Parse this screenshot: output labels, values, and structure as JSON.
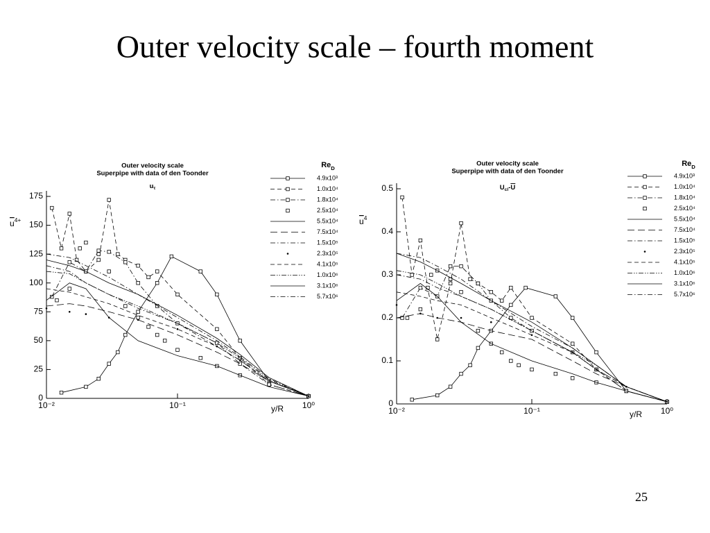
{
  "title": "Outer velocity scale – fourth moment",
  "page_number": "25",
  "chart_data": [
    {
      "type": "line",
      "title": "Outer velocity scale",
      "subtitle": "Superpipe with data of den Toonder",
      "formula": [
        {
          "text": "u"
        },
        {
          "text": "τ",
          "sub": true
        }
      ],
      "ylabel": [
        {
          "text": "u",
          "overline": true
        },
        {
          "text": "4+",
          "sup": true
        }
      ],
      "xlabel": "y/R",
      "xlog": true,
      "xlim": [
        0.01,
        1
      ],
      "xticks": [
        {
          "value": 0.01,
          "label": "10⁻²"
        },
        {
          "value": 0.1,
          "label": "10⁻¹"
        },
        {
          "value": 1,
          "label": "10⁰"
        }
      ],
      "ylim": [
        0,
        175
      ],
      "yticks": [
        0,
        25,
        50,
        75,
        100,
        125,
        150,
        175
      ],
      "legend": "top-right",
      "legend_title": [
        {
          "text": "Re"
        },
        {
          "text": "D",
          "sub": true
        }
      ],
      "series": [
        {
          "name": "4.9x10³",
          "color": "#000",
          "line": "solid",
          "marker": "square",
          "x": [
            0.013,
            0.02,
            0.025,
            0.03,
            0.035,
            0.04,
            0.05,
            0.07,
            0.09,
            0.15,
            0.2,
            0.3,
            0.5,
            1
          ],
          "values": [
            5,
            10,
            17,
            30,
            40,
            55,
            75,
            100,
            123,
            110,
            90,
            50,
            15,
            2
          ]
        },
        {
          "name": "1.0x10⁴",
          "color": "#000",
          "line": "dashed",
          "marker": "square",
          "x": [
            0.011,
            0.013,
            0.015,
            0.017,
            0.02,
            0.025,
            0.03,
            0.035,
            0.04,
            0.05,
            0.06,
            0.07,
            0.1,
            0.2,
            0.3,
            0.5,
            1
          ],
          "values": [
            165,
            130,
            160,
            120,
            110,
            120,
            172,
            125,
            120,
            115,
            105,
            110,
            90,
            60,
            35,
            12,
            2
          ]
        },
        {
          "name": "1.8x10⁴",
          "color": "#000",
          "line": "dashdot",
          "marker": "square",
          "x": [
            0.011,
            0.015,
            0.02,
            0.025,
            0.03,
            0.04,
            0.05,
            0.07,
            0.1,
            0.2,
            0.3,
            0.5,
            1
          ],
          "values": [
            88,
            118,
            110,
            128,
            127,
            118,
            100,
            80,
            65,
            48,
            30,
            12,
            2
          ]
        },
        {
          "name": "2.5x10⁴",
          "color": "#000",
          "line": "none",
          "marker": "square",
          "x": [
            0.012,
            0.015,
            0.018,
            0.02,
            0.025,
            0.03,
            0.04,
            0.05,
            0.06,
            0.07,
            0.08,
            0.1,
            0.15,
            0.2,
            0.3,
            0.5,
            1
          ],
          "values": [
            85,
            95,
            130,
            135,
            125,
            110,
            80,
            70,
            62,
            55,
            50,
            42,
            35,
            28,
            20,
            12,
            2
          ]
        },
        {
          "name": "5.5x10⁴",
          "color": "#000",
          "line": "solid",
          "marker": "none",
          "x": [
            0.01,
            0.015,
            0.02,
            0.03,
            0.05,
            0.1,
            0.2,
            0.3,
            0.5,
            1
          ],
          "values": [
            85,
            100,
            95,
            70,
            50,
            37,
            28,
            20,
            10,
            2
          ]
        },
        {
          "name": "7.5x10⁴",
          "color": "#000",
          "line": "longdash",
          "marker": "none",
          "x": [
            0.01,
            0.015,
            0.02,
            0.03,
            0.05,
            0.1,
            0.2,
            0.3,
            0.5,
            1
          ],
          "values": [
            80,
            82,
            80,
            75,
            68,
            55,
            40,
            30,
            15,
            2
          ]
        },
        {
          "name": "1.5x10⁵",
          "color": "#000",
          "line": "dashdot",
          "marker": "none",
          "x": [
            0.01,
            0.015,
            0.02,
            0.03,
            0.05,
            0.1,
            0.2,
            0.3,
            0.5,
            1
          ],
          "values": [
            115,
            110,
            100,
            90,
            78,
            65,
            45,
            33,
            15,
            2
          ]
        },
        {
          "name": "2.3x10⁵",
          "color": "#000",
          "line": "none",
          "marker": "dot",
          "x": [
            0.01,
            0.015,
            0.02,
            0.03,
            0.05,
            0.1,
            0.2,
            0.3,
            0.5,
            1
          ],
          "values": [
            78,
            75,
            73,
            70,
            68,
            60,
            45,
            33,
            15,
            2
          ]
        },
        {
          "name": "4.1x10⁵",
          "color": "#000",
          "line": "dashed",
          "marker": "none",
          "x": [
            0.01,
            0.015,
            0.02,
            0.03,
            0.05,
            0.1,
            0.2,
            0.3,
            0.5,
            1
          ],
          "values": [
            95,
            92,
            88,
            82,
            72,
            60,
            45,
            33,
            15,
            2
          ]
        },
        {
          "name": "1.0x10⁶",
          "color": "#000",
          "line": "dashdotdot",
          "marker": "none",
          "x": [
            0.01,
            0.015,
            0.02,
            0.03,
            0.05,
            0.1,
            0.2,
            0.3,
            0.5,
            1
          ],
          "values": [
            110,
            108,
            100,
            90,
            80,
            65,
            48,
            35,
            16,
            2
          ]
        },
        {
          "name": "3.1x10⁶",
          "color": "#000",
          "line": "solid",
          "marker": "none",
          "x": [
            0.01,
            0.015,
            0.02,
            0.03,
            0.05,
            0.1,
            0.2,
            0.3,
            0.5,
            1
          ],
          "values": [
            120,
            115,
            110,
            100,
            90,
            72,
            52,
            38,
            18,
            2
          ]
        },
        {
          "name": "5.7x10⁶",
          "color": "#000",
          "line": "dashdot",
          "marker": "none",
          "x": [
            0.01,
            0.015,
            0.02,
            0.03,
            0.05,
            0.1,
            0.2,
            0.3,
            0.5,
            1
          ],
          "values": [
            125,
            122,
            115,
            105,
            90,
            70,
            50,
            36,
            17,
            2
          ]
        }
      ]
    },
    {
      "type": "line",
      "title": "Outer velocity scale",
      "subtitle": "Superpipe with data of den Toonder",
      "formula": [
        {
          "text": "U"
        },
        {
          "text": "cl",
          "sub": true
        },
        {
          "text": "-"
        },
        {
          "text": "U",
          "overline": true
        }
      ],
      "ylabel": [
        {
          "text": "u",
          "overline": true
        },
        {
          "text": "4",
          "sup": true
        }
      ],
      "xlabel": "y/R",
      "xlog": true,
      "xlim": [
        0.01,
        1
      ],
      "xticks": [
        {
          "value": 0.01,
          "label": "10⁻²"
        },
        {
          "value": 0.1,
          "label": "10⁻¹"
        },
        {
          "value": 1,
          "label": "10⁰"
        }
      ],
      "ylim": [
        0,
        0.5
      ],
      "yticks": [
        0,
        0.1,
        0.2,
        0.3,
        0.4,
        0.5
      ],
      "legend": "top-right",
      "legend_title": [
        {
          "text": "Re"
        },
        {
          "text": "D",
          "sub": true
        }
      ],
      "series": [
        {
          "name": "4.9x10³",
          "color": "#000",
          "line": "solid",
          "marker": "square",
          "x": [
            0.013,
            0.02,
            0.025,
            0.03,
            0.035,
            0.04,
            0.05,
            0.07,
            0.09,
            0.15,
            0.2,
            0.3,
            0.5,
            1
          ],
          "values": [
            0.01,
            0.02,
            0.04,
            0.07,
            0.09,
            0.13,
            0.17,
            0.23,
            0.27,
            0.25,
            0.2,
            0.12,
            0.03,
            0.005
          ]
        },
        {
          "name": "1.0x10⁴",
          "color": "#000",
          "line": "dashed",
          "marker": "square",
          "x": [
            0.011,
            0.013,
            0.015,
            0.017,
            0.02,
            0.025,
            0.03,
            0.035,
            0.04,
            0.05,
            0.06,
            0.07,
            0.1,
            0.2,
            0.3,
            0.5,
            1
          ],
          "values": [
            0.48,
            0.3,
            0.38,
            0.27,
            0.15,
            0.28,
            0.42,
            0.29,
            0.28,
            0.26,
            0.24,
            0.27,
            0.2,
            0.14,
            0.08,
            0.03,
            0.005
          ]
        },
        {
          "name": "1.8x10⁴",
          "color": "#000",
          "line": "dashdot",
          "marker": "square",
          "x": [
            0.011,
            0.015,
            0.02,
            0.025,
            0.03,
            0.04,
            0.05,
            0.07,
            0.1,
            0.2,
            0.3,
            0.5,
            1
          ],
          "values": [
            0.2,
            0.27,
            0.25,
            0.32,
            0.32,
            0.28,
            0.24,
            0.2,
            0.17,
            0.12,
            0.08,
            0.03,
            0.005
          ]
        },
        {
          "name": "2.5x10⁴",
          "color": "#000",
          "line": "none",
          "marker": "square",
          "x": [
            0.012,
            0.015,
            0.018,
            0.02,
            0.025,
            0.03,
            0.04,
            0.05,
            0.06,
            0.07,
            0.08,
            0.1,
            0.15,
            0.2,
            0.3,
            0.5,
            1
          ],
          "values": [
            0.2,
            0.22,
            0.3,
            0.31,
            0.29,
            0.26,
            0.17,
            0.14,
            0.12,
            0.1,
            0.09,
            0.08,
            0.07,
            0.06,
            0.05,
            0.03,
            0.005
          ]
        },
        {
          "name": "5.5x10⁴",
          "color": "#000",
          "line": "solid",
          "marker": "none",
          "x": [
            0.01,
            0.015,
            0.02,
            0.03,
            0.05,
            0.1,
            0.2,
            0.3,
            0.5,
            1
          ],
          "values": [
            0.24,
            0.28,
            0.25,
            0.19,
            0.14,
            0.1,
            0.07,
            0.05,
            0.03,
            0.005
          ]
        },
        {
          "name": "7.5x10⁴",
          "color": "#000",
          "line": "longdash",
          "marker": "none",
          "x": [
            0.01,
            0.015,
            0.02,
            0.03,
            0.05,
            0.1,
            0.2,
            0.3,
            0.5,
            1
          ],
          "values": [
            0.2,
            0.21,
            0.2,
            0.19,
            0.17,
            0.15,
            0.1,
            0.07,
            0.04,
            0.005
          ]
        },
        {
          "name": "1.5x10⁵",
          "color": "#000",
          "line": "dashdot",
          "marker": "none",
          "x": [
            0.01,
            0.015,
            0.02,
            0.03,
            0.05,
            0.1,
            0.2,
            0.3,
            0.5,
            1
          ],
          "values": [
            0.3,
            0.29,
            0.27,
            0.25,
            0.22,
            0.17,
            0.12,
            0.08,
            0.04,
            0.005
          ]
        },
        {
          "name": "2.3x10⁵",
          "color": "#000",
          "line": "none",
          "marker": "dot",
          "x": [
            0.01,
            0.015,
            0.02,
            0.03,
            0.05,
            0.1,
            0.2,
            0.3,
            0.5,
            1
          ],
          "values": [
            0.23,
            0.21,
            0.2,
            0.2,
            0.19,
            0.16,
            0.12,
            0.08,
            0.04,
            0.005
          ]
        },
        {
          "name": "4.1x10⁵",
          "color": "#000",
          "line": "dashed",
          "marker": "none",
          "x": [
            0.01,
            0.015,
            0.02,
            0.03,
            0.05,
            0.1,
            0.2,
            0.3,
            0.5,
            1
          ],
          "values": [
            0.26,
            0.25,
            0.24,
            0.23,
            0.2,
            0.16,
            0.12,
            0.08,
            0.04,
            0.005
          ]
        },
        {
          "name": "1.0x10⁶",
          "color": "#000",
          "line": "dashdotdot",
          "marker": "none",
          "x": [
            0.01,
            0.015,
            0.02,
            0.03,
            0.05,
            0.1,
            0.2,
            0.3,
            0.5,
            1
          ],
          "values": [
            0.31,
            0.3,
            0.28,
            0.25,
            0.22,
            0.17,
            0.12,
            0.09,
            0.04,
            0.005
          ]
        },
        {
          "name": "3.1x10⁶",
          "color": "#000",
          "line": "solid",
          "marker": "none",
          "x": [
            0.01,
            0.015,
            0.02,
            0.03,
            0.05,
            0.1,
            0.2,
            0.3,
            0.5,
            1
          ],
          "values": [
            0.35,
            0.33,
            0.31,
            0.28,
            0.24,
            0.19,
            0.13,
            0.09,
            0.04,
            0.005
          ]
        },
        {
          "name": "5.7x10⁶",
          "color": "#000",
          "line": "dashdot",
          "marker": "none",
          "x": [
            0.01,
            0.015,
            0.02,
            0.03,
            0.05,
            0.1,
            0.2,
            0.3,
            0.5,
            1
          ],
          "values": [
            0.35,
            0.34,
            0.32,
            0.29,
            0.24,
            0.18,
            0.13,
            0.09,
            0.04,
            0.005
          ]
        }
      ]
    }
  ]
}
